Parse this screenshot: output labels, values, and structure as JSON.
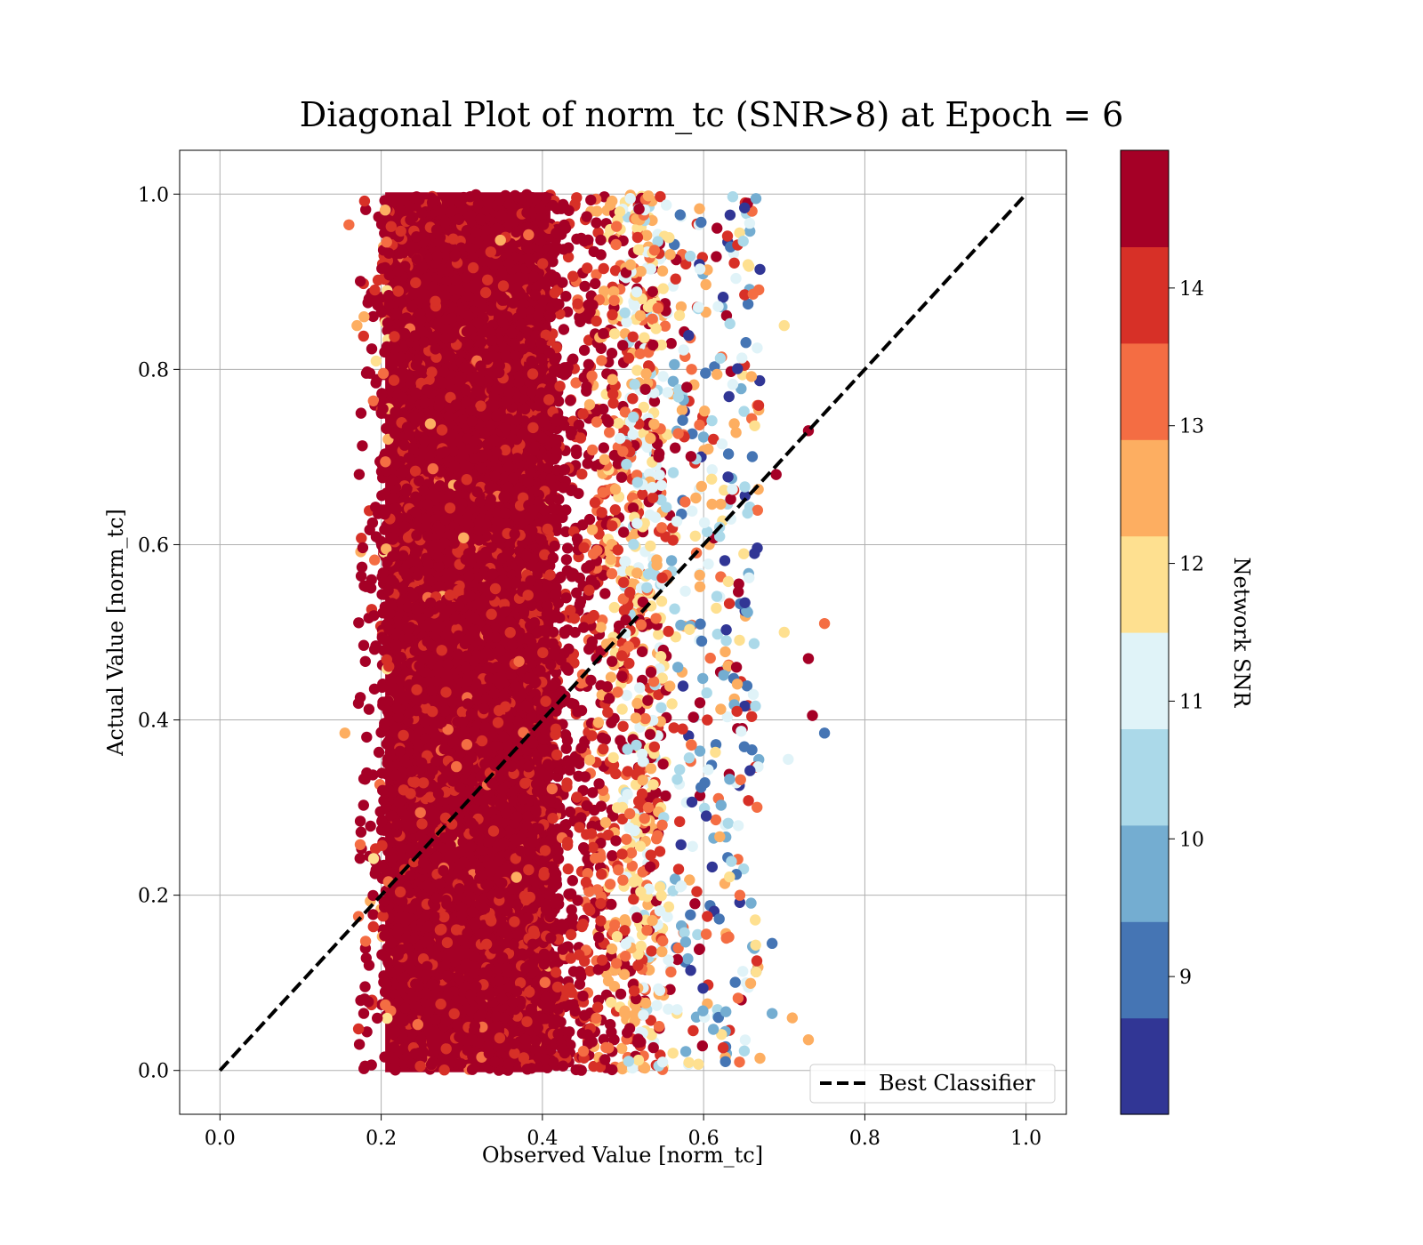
{
  "chart_data": {
    "type": "scatter",
    "title": "Diagonal Plot of norm_tc (SNR>8) at Epoch = 6",
    "xlabel": "Observed Value [norm_tc]",
    "ylabel": "Actual Value [norm_tc]",
    "xlim": [
      -0.05,
      1.05
    ],
    "ylim": [
      -0.05,
      1.05
    ],
    "xticks": [
      "0.0",
      "0.2",
      "0.4",
      "0.6",
      "0.8",
      "1.0"
    ],
    "yticks": [
      "0.0",
      "0.2",
      "0.4",
      "0.6",
      "0.8",
      "1.0"
    ],
    "grid": true,
    "legend": {
      "location": "lower-right",
      "entries": [
        "Best Classifier"
      ]
    },
    "reference_line": {
      "name": "Best Classifier",
      "x": [
        0.0,
        1.0
      ],
      "y": [
        0.0,
        1.0
      ],
      "style": "dashed",
      "color": "#000000"
    },
    "colorbar": {
      "label": "Network SNR",
      "range": [
        8.0,
        15.0
      ],
      "ticks": [
        "9",
        "10",
        "11",
        "12",
        "13",
        "14"
      ],
      "colormap": "RdYlBu_r (discrete, 10 levels)",
      "colors": [
        "#313695",
        "#4575b4",
        "#74add1",
        "#abd9e9",
        "#e0f3f8",
        "#fee090",
        "#fdae61",
        "#f46d43",
        "#d73027",
        "#a50026"
      ]
    },
    "point_cloud": {
      "observed_range": [
        0.15,
        0.75
      ],
      "actual_range": [
        0.0,
        1.0
      ],
      "dense_core_observed_range": [
        0.2,
        0.45
      ],
      "dominant_snr": ">14"
    },
    "outliers": [
      {
        "x": 0.155,
        "y": 0.385,
        "snr": 12.3
      },
      {
        "x": 0.16,
        "y": 0.965,
        "snr": 13.2
      },
      {
        "x": 0.18,
        "y": 0.005,
        "snr": 14.8
      },
      {
        "x": 0.185,
        "y": 0.12,
        "snr": 14.8
      },
      {
        "x": 0.175,
        "y": 0.75,
        "snr": 14.8
      },
      {
        "x": 0.17,
        "y": 0.85,
        "snr": 12.3
      },
      {
        "x": 0.73,
        "y": 0.73,
        "snr": 14.8
      },
      {
        "x": 0.69,
        "y": 0.68,
        "snr": 14.8
      },
      {
        "x": 0.75,
        "y": 0.51,
        "snr": 13.2
      },
      {
        "x": 0.75,
        "y": 0.385,
        "snr": 8.9
      },
      {
        "x": 0.73,
        "y": 0.47,
        "snr": 14.8
      },
      {
        "x": 0.735,
        "y": 0.405,
        "snr": 14.8
      },
      {
        "x": 0.73,
        "y": 0.035,
        "snr": 12.3
      },
      {
        "x": 0.705,
        "y": 0.355,
        "snr": 11.3
      },
      {
        "x": 0.7,
        "y": 0.5,
        "snr": 11.8
      },
      {
        "x": 0.71,
        "y": 0.06,
        "snr": 12.3
      },
      {
        "x": 0.7,
        "y": 0.85,
        "snr": 11.8
      },
      {
        "x": 0.685,
        "y": 0.065,
        "snr": 9.8
      },
      {
        "x": 0.685,
        "y": 0.145,
        "snr": 8.9
      }
    ]
  }
}
